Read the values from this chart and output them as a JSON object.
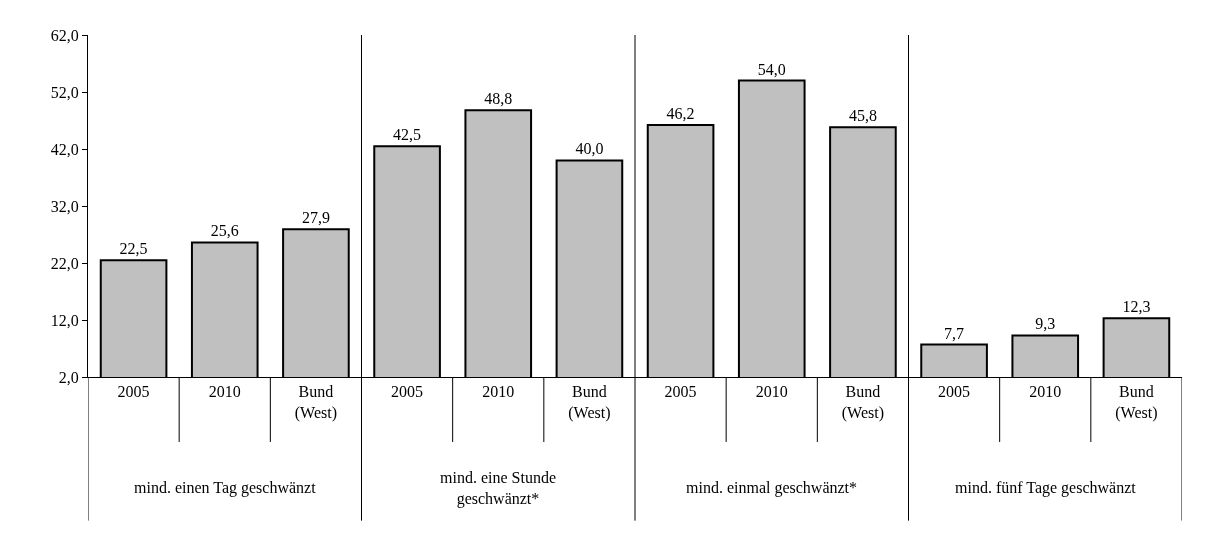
{
  "chart_data": {
    "type": "bar",
    "categories": [
      "2005",
      "2010",
      "Bund\n(West)",
      "2005",
      "2010",
      "Bund\n(West)",
      "2005",
      "2010",
      "Bund\n(West)",
      "2005",
      "2010",
      "Bund\n(West)"
    ],
    "values": [
      22.5,
      25.6,
      27.9,
      42.5,
      48.8,
      40.0,
      46.2,
      54.0,
      45.8,
      7.7,
      9.3,
      12.3
    ],
    "color": "#c0c0c0",
    "ylim": [
      2.0,
      62.0
    ],
    "yticks": [
      {
        "value": 2,
        "label": "2,0"
      },
      {
        "value": 12,
        "label": "12,0"
      },
      {
        "value": 22,
        "label": "22,0"
      },
      {
        "value": 32,
        "label": "32,0"
      },
      {
        "value": 42,
        "label": "42,0"
      },
      {
        "value": 52,
        "label": "52,0"
      },
      {
        "value": 62,
        "label": "62,0"
      }
    ],
    "value_labels": [
      "22,5",
      "25,6",
      "27,9",
      "42,5",
      "48,8",
      "40,0",
      "46,2",
      "54,0",
      "45,8",
      "7,7",
      "9,3",
      "12,3"
    ],
    "legend": false,
    "annotations": [
      "mind. einen Tag geschwänzt",
      "mind. eine Stunde\ngeschwänzt*",
      "mind. einmal geschwänzt*",
      "mind. fünf Tage geschwänzt"
    ]
  }
}
